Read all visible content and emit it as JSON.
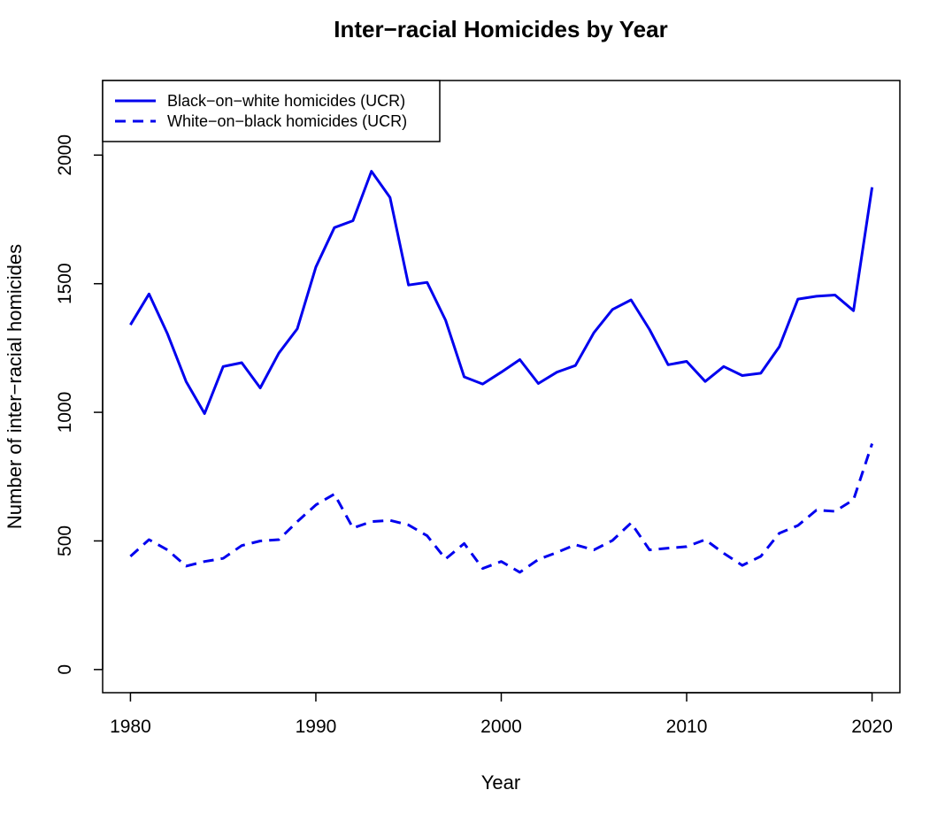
{
  "chart_data": {
    "type": "line",
    "title": "Inter−racial Homicides by Year",
    "xlabel": "Year",
    "ylabel": "Number of inter−racial homicides",
    "xlim": [
      1978.5,
      2021.5
    ],
    "ylim": [
      -90,
      2290
    ],
    "x_ticks": [
      1980,
      1990,
      2000,
      2010,
      2020
    ],
    "y_ticks": [
      0,
      500,
      1000,
      1500,
      2000
    ],
    "grid": false,
    "legend_position": "top-left",
    "x": [
      1980,
      1981,
      1982,
      1983,
      1984,
      1985,
      1986,
      1987,
      1988,
      1989,
      1990,
      1991,
      1992,
      1993,
      1994,
      1995,
      1996,
      1997,
      1998,
      1999,
      2000,
      2001,
      2002,
      2003,
      2004,
      2005,
      2006,
      2007,
      2008,
      2009,
      2010,
      2011,
      2012,
      2013,
      2014,
      2015,
      2016,
      2017,
      2018,
      2019,
      2020
    ],
    "series": [
      {
        "name": "Black−on−white homicides (UCR)",
        "line_style": "solid",
        "color": "#0000ee",
        "values": [
          1340,
          1460,
          1305,
          1120,
          995,
          1178,
          1193,
          1095,
          1230,
          1325,
          1565,
          1718,
          1745,
          1937,
          1835,
          1495,
          1505,
          1358,
          1138,
          1110,
          1156,
          1205,
          1112,
          1156,
          1182,
          1310,
          1400,
          1437,
          1322,
          1185,
          1198,
          1120,
          1178,
          1143,
          1152,
          1255,
          1440,
          1451,
          1456,
          1395,
          1875
        ]
      },
      {
        "name": "White−on−black homicides (UCR)",
        "line_style": "dashed",
        "color": "#0000ee",
        "values": [
          440,
          505,
          465,
          402,
          420,
          432,
          482,
          500,
          505,
          575,
          640,
          682,
          550,
          575,
          580,
          562,
          520,
          430,
          490,
          393,
          420,
          378,
          428,
          455,
          485,
          465,
          502,
          570,
          465,
          472,
          478,
          505,
          452,
          405,
          440,
          530,
          560,
          620,
          615,
          660,
          878
        ]
      }
    ]
  }
}
